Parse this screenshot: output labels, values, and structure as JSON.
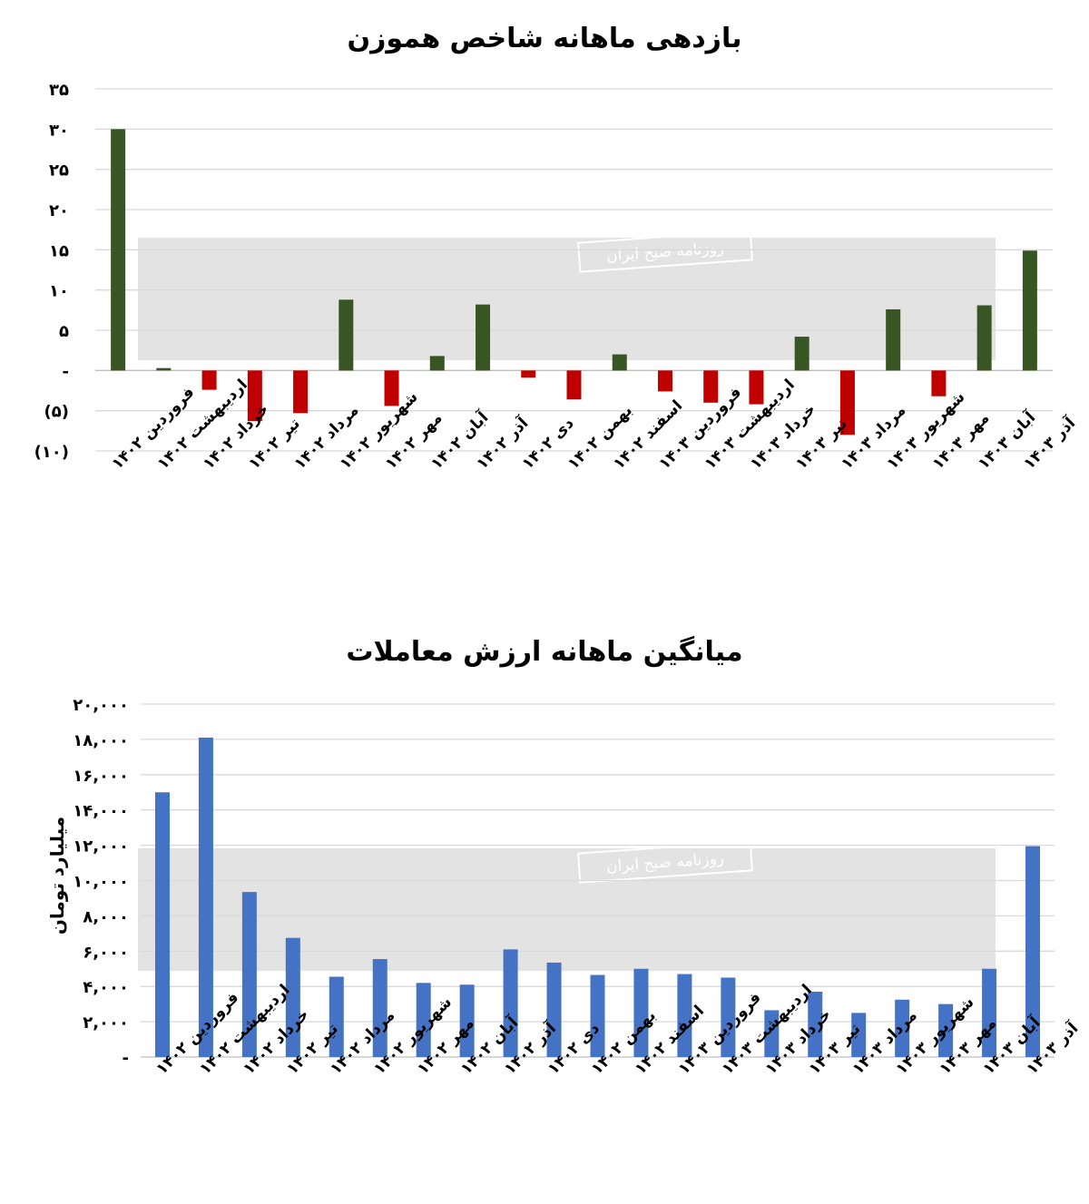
{
  "chart_data": [
    {
      "type": "bar",
      "title": "بازدهی ماهانه شاخص هموزن",
      "xlabel": "",
      "ylabel": "",
      "ylim": [
        -10,
        35
      ],
      "yticks": [
        {
          "value": 35,
          "label": "۳۵"
        },
        {
          "value": 30,
          "label": "۳۰"
        },
        {
          "value": 25,
          "label": "۲۵"
        },
        {
          "value": 20,
          "label": "۲۰"
        },
        {
          "value": 15,
          "label": "۱۵"
        },
        {
          "value": 10,
          "label": "۱۰"
        },
        {
          "value": 5,
          "label": "۵"
        },
        {
          "value": 0,
          "label": "-"
        },
        {
          "value": -5,
          "label": "(۵)"
        },
        {
          "value": -10,
          "label": "(۱۰)"
        }
      ],
      "grid": true,
      "positive_color": "#375623",
      "negative_color": "#C00000",
      "categories": [
        "فروردین ۱۴۰۲",
        "اردیبهشت ۱۴۰۲",
        "خرداد ۱۴۰۲",
        "تیر ۱۴۰۲",
        "مرداد ۱۴۰۲",
        "شهریور ۱۴۰۲",
        "مهر ۱۴۰۲",
        "آبان ۱۴۰۲",
        "آذر ۱۴۰۲",
        "دی ۱۴۰۲",
        "بهمن ۱۴۰۲",
        "اسفند ۱۴۰۲",
        "فروردین ۱۴۰۳",
        "اردیبهشت ۱۴۰۳",
        "خرداد ۱۴۰۳",
        "تیر ۱۴۰۳",
        "مرداد ۱۴۰۳",
        "شهریور ۱۴۰۳",
        "مهر ۱۴۰۳",
        "آبان ۱۴۰۳",
        "آذر ۱۴۰۳"
      ],
      "values": [
        30,
        0.3,
        -2.4,
        -6.3,
        -5.3,
        8.8,
        -4.4,
        1.8,
        8.2,
        -0.9,
        -3.6,
        2.0,
        -2.6,
        -4.0,
        -4.2,
        4.2,
        -8.0,
        7.6,
        -3.2,
        8.1,
        14.9
      ]
    },
    {
      "type": "bar",
      "title": "میانگین ماهانه ارزش معاملات",
      "xlabel": "",
      "ylabel": "میلیارد تومان",
      "ylim": [
        0,
        20000
      ],
      "yticks": [
        {
          "value": 20000,
          "label": "۲۰,۰۰۰"
        },
        {
          "value": 18000,
          "label": "۱۸,۰۰۰"
        },
        {
          "value": 16000,
          "label": "۱۶,۰۰۰"
        },
        {
          "value": 14000,
          "label": "۱۴,۰۰۰"
        },
        {
          "value": 12000,
          "label": "۱۲,۰۰۰"
        },
        {
          "value": 10000,
          "label": "۱۰,۰۰۰"
        },
        {
          "value": 8000,
          "label": "۸,۰۰۰"
        },
        {
          "value": 6000,
          "label": "۶,۰۰۰"
        },
        {
          "value": 4000,
          "label": "۴,۰۰۰"
        },
        {
          "value": 2000,
          "label": "۲,۰۰۰"
        },
        {
          "value": 0,
          "label": "-"
        }
      ],
      "grid": true,
      "bar_color": "#4472C4",
      "categories": [
        "فروردین ۱۴۰۲",
        "اردیبهشت ۱۴۰۲",
        "خرداد ۱۴۰۲",
        "تیر ۱۴۰۲",
        "مرداد ۱۴۰۲",
        "شهریور ۱۴۰۲",
        "مهر ۱۴۰۲",
        "آبان ۱۴۰۲",
        "آذر ۱۴۰۲",
        "دی ۱۴۰۲",
        "بهمن ۱۴۰۲",
        "اسفند ۱۴۰۲",
        "فروردین ۱۴۰۳",
        "اردیبهشت ۱۴۰۳",
        "خرداد ۱۴۰۳",
        "تیر ۱۴۰۳",
        "مرداد ۱۴۰۳",
        "شهریور ۱۴۰۳",
        "مهر ۱۴۰۳",
        "آبان ۱۴۰۳",
        "آذر ۱۴۰۳"
      ],
      "values": [
        15000,
        18100,
        9350,
        6750,
        4550,
        5550,
        4200,
        4100,
        6100,
        5350,
        4650,
        5000,
        4700,
        4500,
        2650,
        3700,
        2500,
        3250,
        3000,
        5000,
        11950
      ]
    }
  ],
  "watermark": {
    "text": "روزنامه صبح ایران",
    "band_color": "#d9d9d9"
  }
}
